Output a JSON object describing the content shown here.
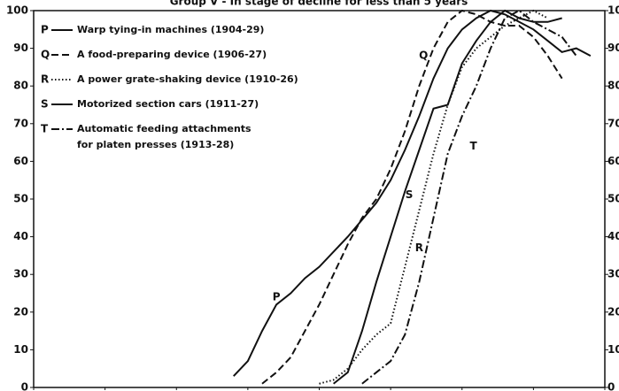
{
  "chart_data": {
    "type": "line",
    "title": "Group V - In stage of decline for less than 5 years",
    "xlim": [
      1890,
      1930
    ],
    "xticks": [
      1890,
      1895,
      1900,
      1905,
      1910,
      1915,
      1920,
      1925,
      1930
    ],
    "ylim": [
      0,
      100
    ],
    "yticks": [
      0,
      10,
      20,
      30,
      40,
      50,
      60,
      70,
      80,
      90,
      100
    ],
    "right_axis_labels": true,
    "series": [
      {
        "label": "P",
        "name": "Warp tying-in machines (1904-29)",
        "color": "#111111",
        "dash": "solid",
        "label_at": [
          1907,
          24
        ],
        "x": [
          1904,
          1905,
          1906,
          1907,
          1908,
          1909,
          1910,
          1912,
          1914,
          1915,
          1916,
          1917,
          1918,
          1919,
          1920,
          1921,
          1922,
          1923,
          1924,
          1925,
          1926,
          1927,
          1928,
          1929
        ],
        "values": [
          3,
          7,
          15,
          22,
          25,
          29,
          32,
          40,
          49,
          55,
          63,
          72,
          82,
          90,
          95,
          98,
          100,
          99,
          97,
          95,
          92,
          89,
          90,
          88
        ]
      },
      {
        "label": "Q",
        "name": "A food-preparing device (1906-27)",
        "color": "#111111",
        "dash": "dashed",
        "label_at": [
          1917.3,
          88
        ],
        "x": [
          1906,
          1907,
          1908,
          1909,
          1910,
          1911,
          1912,
          1913,
          1914,
          1915,
          1916,
          1917,
          1918,
          1919,
          1920,
          1921,
          1922,
          1923,
          1924,
          1925,
          1926,
          1927
        ],
        "values": [
          1,
          4,
          8,
          15,
          22,
          30,
          38,
          45,
          50,
          58,
          68,
          80,
          90,
          97,
          100,
          99,
          97,
          96,
          96,
          93,
          88,
          82
        ]
      },
      {
        "label": "R",
        "name": "A power grate-shaking device (1910-26)",
        "color": "#111111",
        "dash": "dotted",
        "label_at": [
          1917,
          37
        ],
        "x": [
          1910,
          1911,
          1912,
          1913,
          1914,
          1915,
          1916,
          1917,
          1918,
          1919,
          1920,
          1921,
          1922,
          1923,
          1924,
          1925,
          1926
        ],
        "values": [
          1,
          2,
          5,
          10,
          14,
          17,
          32,
          47,
          62,
          75,
          85,
          90,
          93,
          96,
          98,
          100,
          98
        ]
      },
      {
        "label": "S",
        "name": "Motorized section cars (1911-27)",
        "color": "#111111",
        "dash": "solid",
        "label_at": [
          1916.3,
          51
        ],
        "x": [
          1911,
          1912,
          1913,
          1914,
          1915,
          1916,
          1917,
          1918,
          1919,
          1920,
          1921,
          1922,
          1923,
          1924,
          1925,
          1926,
          1927
        ],
        "values": [
          1,
          4,
          15,
          28,
          40,
          52,
          63,
          74,
          75,
          86,
          92,
          97,
          100,
          98,
          97,
          97,
          98
        ]
      },
      {
        "label": "T",
        "name": "Automatic feeding attachments for platen presses (1913-28)",
        "color": "#111111",
        "dash": "dashdot",
        "label_at": [
          1920.8,
          64
        ],
        "x": [
          1913,
          1914,
          1915,
          1916,
          1917,
          1918,
          1919,
          1920,
          1921,
          1922,
          1923,
          1924,
          1925,
          1926,
          1927,
          1928
        ],
        "values": [
          1,
          4,
          7,
          14,
          28,
          45,
          62,
          72,
          80,
          90,
          98,
          100,
          97,
          95,
          93,
          88
        ]
      }
    ]
  }
}
